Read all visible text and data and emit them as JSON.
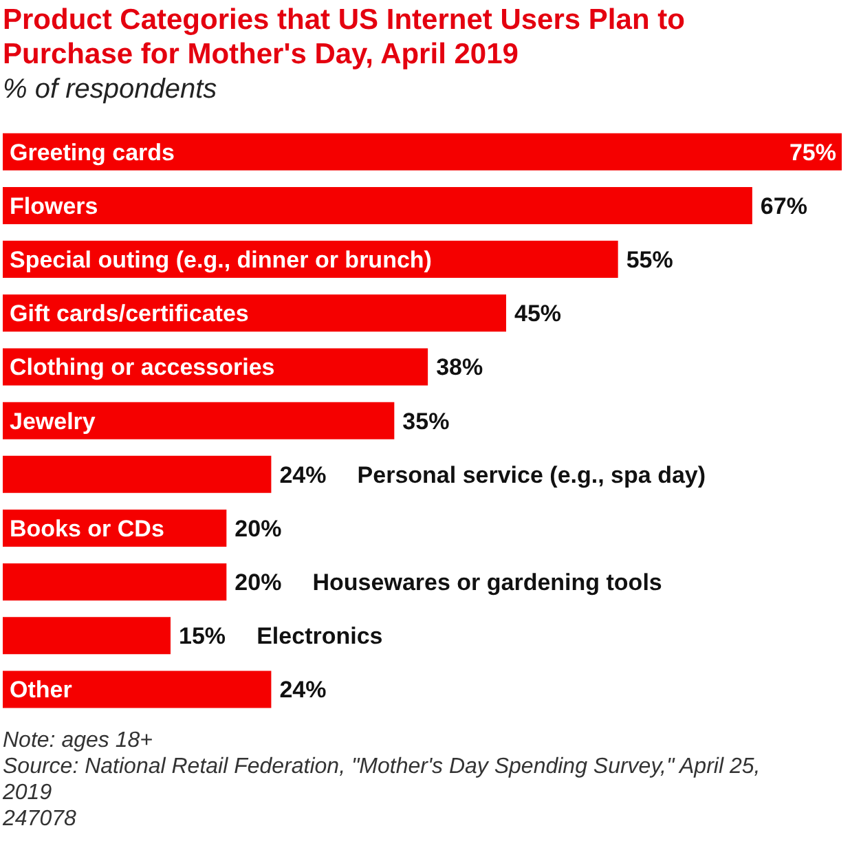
{
  "chart_data": {
    "type": "bar",
    "orientation": "horizontal",
    "title": "Product Categories that US Internet Users Plan to Purchase for Mother's Day, April 2019",
    "subtitle": "% of respondents",
    "categories": [
      "Greeting cards",
      "Flowers",
      "Special outing (e.g., dinner or brunch)",
      "Gift cards/certificates",
      "Clothing or accessories",
      "Jewelry",
      "Personal service (e.g., spa day)",
      "Books or CDs",
      "Housewares or gardening tools",
      "Electronics",
      "Other"
    ],
    "values": [
      75,
      67,
      55,
      45,
      38,
      35,
      24,
      20,
      20,
      15,
      24
    ],
    "value_labels": [
      "75%",
      "67%",
      "55%",
      "45%",
      "38%",
      "35%",
      "24%",
      "20%",
      "20%",
      "15%",
      "24%"
    ],
    "color": "#f50000",
    "tick_labels": false,
    "annotations": [
      "Note: ages 18+",
      "Source: National Retail Federation, \"Mother's Day Spending Survey,\" April 25, 2019",
      "247078"
    ]
  }
}
